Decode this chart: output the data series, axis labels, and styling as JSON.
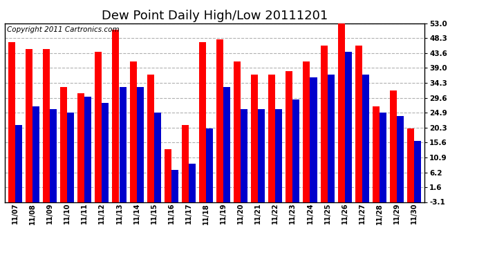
{
  "title": "Dew Point Daily High/Low 20111201",
  "copyright": "Copyright 2011 Cartronics.com",
  "dates": [
    "11/07",
    "11/08",
    "11/09",
    "11/10",
    "11/11",
    "11/12",
    "11/13",
    "11/14",
    "11/15",
    "11/16",
    "11/17",
    "11/18",
    "11/19",
    "11/20",
    "11/21",
    "11/22",
    "11/23",
    "11/24",
    "11/25",
    "11/26",
    "11/27",
    "11/28",
    "11/29",
    "11/30"
  ],
  "highs": [
    47.0,
    45.0,
    45.0,
    33.0,
    31.0,
    44.0,
    51.0,
    41.0,
    37.0,
    13.5,
    21.0,
    47.0,
    48.0,
    41.0,
    37.0,
    37.0,
    38.0,
    41.0,
    46.0,
    53.0,
    46.0,
    27.0,
    32.0,
    20.0
  ],
  "lows": [
    21.0,
    27.0,
    26.0,
    25.0,
    30.0,
    28.0,
    33.0,
    33.0,
    25.0,
    7.0,
    9.0,
    20.0,
    33.0,
    26.0,
    26.0,
    26.0,
    29.0,
    36.0,
    37.0,
    44.0,
    37.0,
    25.0,
    24.0,
    16.0
  ],
  "high_color": "#ff0000",
  "low_color": "#0000cc",
  "bg_color": "#ffffff",
  "grid_color": "#b0b0b0",
  "yticks": [
    -3.1,
    1.6,
    6.2,
    10.9,
    15.6,
    20.3,
    24.9,
    29.6,
    34.3,
    39.0,
    43.6,
    48.3,
    53.0
  ],
  "ymin": -3.1,
  "ymax": 53.0,
  "title_fontsize": 13,
  "copyright_fontsize": 7.5
}
